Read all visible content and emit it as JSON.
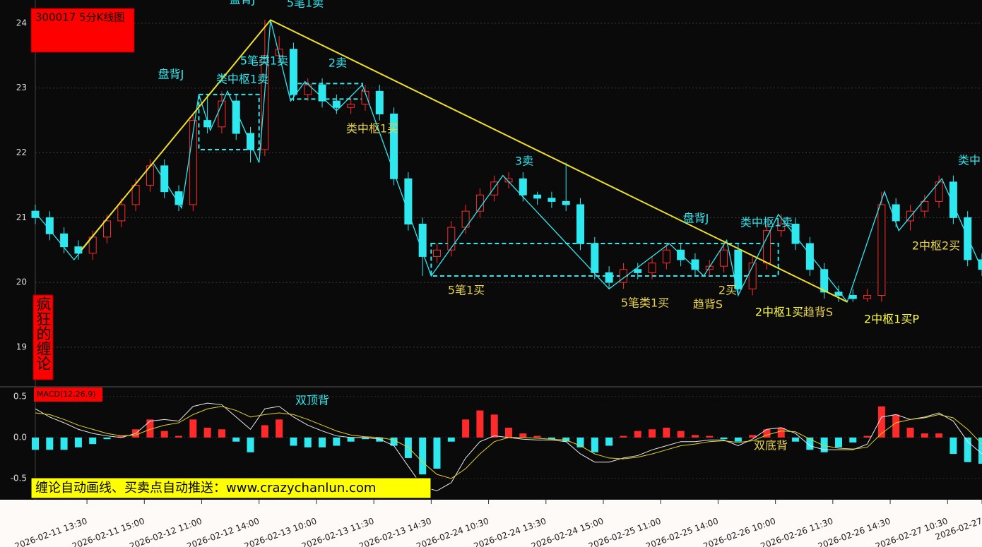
{
  "chart_data": [
    {
      "type": "candlestick",
      "title": "300017 5分K线图",
      "label": "疯狂的缠论",
      "x": [
        0,
        5,
        10,
        15,
        20,
        25,
        30,
        35,
        40,
        45,
        50,
        55,
        60,
        65,
        70,
        75,
        80,
        85,
        90,
        95,
        100,
        105,
        110,
        115,
        120,
        125,
        130,
        135,
        140,
        145,
        150,
        155,
        160,
        165,
        170,
        175,
        180,
        185,
        190,
        195,
        200,
        205,
        210,
        215,
        220,
        225,
        230,
        235,
        240,
        245,
        250,
        255,
        260,
        265,
        270,
        275,
        280,
        285,
        290,
        295,
        300,
        305,
        310,
        315,
        320,
        325,
        330
      ],
      "open": [
        21.1,
        21.0,
        20.75,
        20.55,
        20.45,
        20.7,
        20.95,
        21.2,
        21.5,
        21.8,
        21.4,
        21.2,
        22.5,
        22.4,
        22.8,
        22.3,
        22.05,
        23.5,
        23.6,
        22.9,
        23.05,
        22.8,
        22.7,
        22.75,
        22.95,
        22.6,
        21.6,
        20.9,
        20.4,
        20.5,
        20.85,
        21.1,
        21.35,
        21.55,
        21.6,
        21.35,
        21.3,
        21.25,
        21.2,
        20.6,
        20.15,
        20.0,
        20.2,
        20.15,
        20.3,
        20.5,
        20.35,
        20.2,
        20.25,
        20.5,
        19.9,
        20.3,
        20.8,
        20.9,
        20.6,
        20.2,
        19.85,
        19.8,
        19.75,
        19.8,
        21.2,
        20.95,
        21.1,
        21.25,
        21.55,
        21.0,
        20.35
      ],
      "high": [
        21.2,
        21.1,
        20.85,
        20.65,
        20.8,
        21.05,
        21.3,
        21.6,
        21.9,
        21.9,
        21.5,
        22.6,
        22.9,
        22.95,
        22.9,
        22.4,
        24.05,
        23.8,
        23.7,
        23.15,
        23.15,
        22.9,
        22.85,
        23.05,
        23.05,
        22.7,
        21.7,
        21.0,
        20.6,
        20.95,
        21.2,
        21.45,
        21.65,
        21.7,
        21.7,
        21.4,
        21.4,
        21.85,
        21.3,
        20.7,
        20.25,
        20.3,
        20.3,
        20.4,
        20.6,
        20.6,
        20.45,
        20.35,
        20.65,
        20.6,
        20.4,
        20.9,
        21.05,
        21.0,
        20.7,
        20.3,
        19.95,
        19.9,
        19.9,
        21.4,
        21.3,
        21.2,
        21.35,
        21.65,
        21.65,
        21.1,
        20.45
      ],
      "low": [
        20.9,
        20.65,
        20.45,
        20.35,
        20.35,
        20.6,
        20.85,
        21.1,
        21.4,
        21.3,
        21.1,
        21.1,
        22.3,
        22.3,
        22.2,
        21.85,
        21.95,
        23.4,
        22.8,
        22.8,
        22.7,
        22.6,
        22.6,
        22.65,
        22.5,
        21.5,
        20.8,
        20.1,
        20.3,
        20.4,
        20.75,
        21.0,
        21.25,
        21.45,
        21.25,
        21.2,
        21.15,
        21.1,
        20.5,
        20.05,
        19.9,
        19.9,
        20.05,
        20.05,
        20.2,
        20.25,
        20.1,
        20.1,
        20.15,
        19.8,
        19.8,
        20.2,
        20.7,
        20.5,
        20.1,
        19.75,
        19.7,
        19.7,
        19.7,
        19.7,
        20.85,
        20.8,
        21.0,
        21.15,
        20.9,
        20.25,
        20.1
      ],
      "close": [
        21.0,
        20.75,
        20.55,
        20.45,
        20.7,
        20.95,
        21.2,
        21.5,
        21.8,
        21.4,
        21.2,
        22.5,
        22.4,
        22.8,
        22.3,
        22.05,
        23.5,
        23.6,
        22.9,
        23.05,
        22.8,
        22.7,
        22.75,
        22.95,
        22.6,
        21.6,
        20.9,
        20.4,
        20.5,
        20.85,
        21.1,
        21.35,
        21.55,
        21.6,
        21.35,
        21.3,
        21.25,
        21.2,
        20.6,
        20.15,
        20.0,
        20.2,
        20.15,
        20.3,
        20.5,
        20.35,
        20.2,
        20.25,
        20.5,
        19.9,
        20.3,
        20.8,
        20.9,
        20.6,
        20.2,
        19.85,
        19.8,
        19.75,
        19.8,
        21.2,
        20.95,
        21.1,
        21.25,
        21.55,
        21.0,
        20.35,
        20.2
      ],
      "up_color": "#ff2a2a",
      "down_color": "#2ee8f0",
      "xlim": [
        0,
        330
      ],
      "ylim": [
        18.4,
        24.25
      ],
      "yticks": [
        19,
        20,
        21,
        22,
        23,
        24
      ],
      "grid": true,
      "xticks": [
        {
          "value": 18,
          "label": "2026-02-11 13:30"
        },
        {
          "value": 38,
          "label": "2026-02-11 15:00"
        },
        {
          "value": 58,
          "label": "2026-02-12 11:00"
        },
        {
          "value": 78,
          "label": "2026-02-12 14:00"
        },
        {
          "value": 98,
          "label": "2026-02-13 10:00"
        },
        {
          "value": 118,
          "label": "2026-02-13 11:30"
        },
        {
          "value": 138,
          "label": "2026-02-13 14:30"
        },
        {
          "value": 158,
          "label": "2026-02-24 10:30"
        },
        {
          "value": 178,
          "label": "2026-02-24 13:30"
        },
        {
          "value": 198,
          "label": "2026-02-24 15:00"
        },
        {
          "value": 218,
          "label": "2026-02-25 11:00"
        },
        {
          "value": 238,
          "label": "2026-02-25 14:00"
        },
        {
          "value": 258,
          "label": "2026-02-26 10:00"
        },
        {
          "value": 278,
          "label": "2026-02-26 11:30"
        },
        {
          "value": 298,
          "label": "2026-02-26 14:30"
        },
        {
          "value": 318,
          "label": "2026-02-27 10:30"
        },
        {
          "value": 330,
          "label": "2026-02-27"
        }
      ],
      "strokes": {
        "color": "#2ee8f0",
        "x": [
          0,
          13.5,
          41,
          51,
          57,
          61,
          67,
          78,
          82,
          89,
          94,
          105,
          114,
          138,
          163,
          200,
          221,
          233,
          241,
          245,
          259,
          283,
          296,
          301,
          316,
          330
        ],
        "y": [
          21.08,
          20.35,
          21.85,
          21.15,
          22.9,
          22.35,
          22.95,
          21.85,
          24.05,
          22.8,
          23.1,
          22.65,
          23.05,
          20.1,
          21.65,
          19.9,
          20.6,
          20.1,
          20.65,
          19.8,
          21.05,
          19.7,
          21.4,
          20.8,
          21.6,
          20.2
        ]
      },
      "trend": {
        "color": "#f0e020",
        "x": [
          16,
          82,
          283
        ],
        "y": [
          20.5,
          24.05,
          19.7
        ]
      },
      "zones": [
        {
          "x": [
            57,
            78
          ],
          "y": [
            22.05,
            22.9
          ]
        },
        {
          "x": [
            89,
            114
          ],
          "y": [
            22.83,
            23.07
          ]
        },
        {
          "x": [
            138,
            259
          ],
          "y": [
            20.1,
            20.6
          ]
        }
      ],
      "annotations": [
        "盘背J",
        "5笔1卖",
        "盘背J",
        "5笔类1卖",
        "类中枢1卖",
        "2卖",
        "类中枢1买",
        "3卖",
        "5笔1买",
        "5笔类1买",
        "盘背J",
        "类中枢1卖",
        "2买",
        "趋背S",
        "2中枢1买",
        "趋背S",
        "2中枢1买P",
        "类中",
        "2中枢2买"
      ]
    },
    {
      "type": "macd",
      "title": "MACD(12,26,9)",
      "banner": "缠论自动画线、买卖点自动推送：www.crazychanlun.com",
      "x": [
        0,
        5,
        10,
        15,
        20,
        25,
        30,
        35,
        40,
        45,
        50,
        55,
        60,
        65,
        70,
        75,
        80,
        85,
        90,
        95,
        100,
        105,
        110,
        115,
        120,
        125,
        130,
        135,
        140,
        145,
        150,
        155,
        160,
        165,
        170,
        175,
        180,
        185,
        190,
        195,
        200,
        205,
        210,
        215,
        220,
        225,
        230,
        235,
        240,
        245,
        250,
        255,
        260,
        265,
        270,
        275,
        280,
        285,
        290,
        295,
        300,
        305,
        310,
        315,
        320,
        325,
        330
      ],
      "histogram": [
        -0.15,
        -0.15,
        -0.15,
        -0.12,
        -0.08,
        -0.02,
        0.02,
        0.1,
        0.22,
        0.08,
        0.02,
        0.22,
        0.12,
        0.1,
        -0.05,
        -0.18,
        0.15,
        0.22,
        -0.1,
        -0.12,
        -0.12,
        -0.1,
        -0.05,
        -0.02,
        -0.05,
        -0.1,
        -0.25,
        -0.45,
        -0.38,
        -0.05,
        0.22,
        0.33,
        0.28,
        0.12,
        0.05,
        0.02,
        -0.02,
        -0.05,
        -0.12,
        -0.18,
        -0.1,
        0.02,
        0.08,
        0.1,
        0.12,
        0.08,
        0.03,
        0.02,
        -0.02,
        -0.05,
        0.03,
        0.1,
        0.12,
        -0.05,
        -0.15,
        -0.18,
        -0.12,
        -0.06,
        0.02,
        0.38,
        0.28,
        0.12,
        0.05,
        0.05,
        -0.2,
        -0.3,
        -0.32
      ],
      "series": [
        {
          "color": "#e8e8e8",
          "values": [
            0.35,
            0.25,
            0.18,
            0.1,
            0.05,
            0.02,
            0.0,
            0.05,
            0.2,
            0.22,
            0.2,
            0.38,
            0.42,
            0.4,
            0.25,
            0.1,
            0.35,
            0.38,
            0.25,
            0.15,
            0.08,
            0.02,
            0.0,
            0.0,
            -0.02,
            -0.1,
            -0.35,
            -0.6,
            -0.65,
            -0.55,
            -0.25,
            -0.05,
            0.02,
            0.0,
            -0.02,
            -0.03,
            -0.03,
            -0.05,
            -0.2,
            -0.3,
            -0.3,
            -0.25,
            -0.22,
            -0.15,
            -0.1,
            -0.05,
            -0.05,
            -0.03,
            -0.03,
            -0.1,
            -0.02,
            0.1,
            0.12,
            0.05,
            -0.1,
            -0.15,
            -0.15,
            -0.15,
            -0.08,
            0.25,
            0.28,
            0.22,
            0.25,
            0.3,
            0.2,
            -0.05,
            -0.2
          ]
        },
        {
          "color": "#e0d020",
          "values": [
            0.3,
            0.28,
            0.22,
            0.15,
            0.1,
            0.05,
            0.02,
            0.03,
            0.1,
            0.15,
            0.18,
            0.28,
            0.35,
            0.38,
            0.33,
            0.25,
            0.28,
            0.3,
            0.28,
            0.22,
            0.15,
            0.08,
            0.03,
            0.01,
            0.0,
            -0.03,
            -0.12,
            -0.3,
            -0.45,
            -0.5,
            -0.38,
            -0.2,
            -0.05,
            0.0,
            0.0,
            -0.01,
            -0.02,
            -0.03,
            -0.1,
            -0.2,
            -0.25,
            -0.26,
            -0.24,
            -0.2,
            -0.15,
            -0.1,
            -0.08,
            -0.05,
            -0.04,
            -0.06,
            -0.04,
            0.03,
            0.08,
            0.07,
            -0.02,
            -0.1,
            -0.13,
            -0.14,
            -0.12,
            0.05,
            0.18,
            0.22,
            0.24,
            0.28,
            0.24,
            0.1,
            -0.08
          ]
        }
      ],
      "xlim": [
        0,
        330
      ],
      "ylim": [
        -0.75,
        0.55
      ],
      "yticks": [
        0.5,
        {
          "value": 0,
          "label": "0.0"
        },
        -0.5
      ],
      "annotations": [
        "双顶背",
        "双底背"
      ]
    }
  ]
}
